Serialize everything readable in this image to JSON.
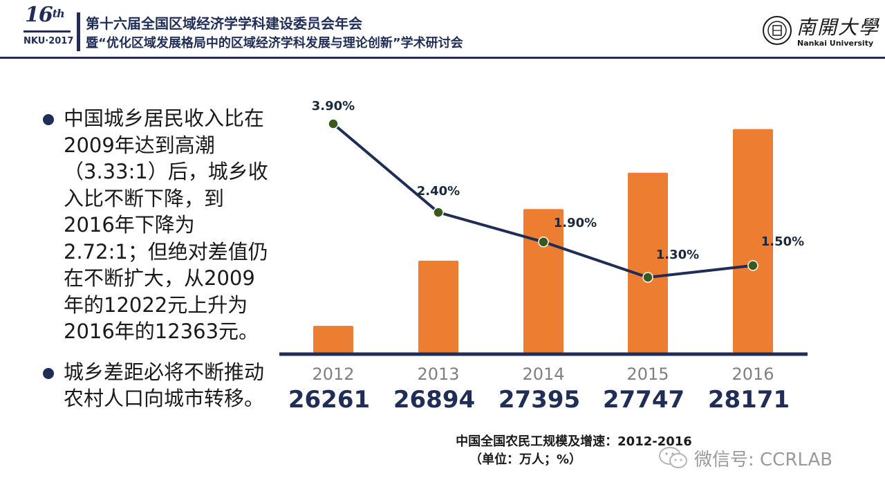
{
  "header": {
    "logo_number": "16",
    "logo_suffix": "th",
    "logo_sub": "NKU·2017",
    "title_line1": "第十六届全国区域经济学学科建设委员会年会",
    "title_line2": "暨“优化区域发展格局中的区域经济学科发展与理论创新”学术研讨会",
    "university_cn": "南開大學",
    "university_en": "Nankai University"
  },
  "bullets": [
    "中国城乡居民收入比在2009年达到高潮（3.33:1）后，城乡收入比不断下降，到2016年下降为2.72:1；但绝对差值仍在不断扩大，从2009年的12022元上升为2016年的12363元。",
    "城乡差距必将不断推动农村人口向城市转移。"
  ],
  "chart_data": {
    "type": "bar",
    "categories": [
      "2012",
      "2013",
      "2014",
      "2015",
      "2016"
    ],
    "series": [
      {
        "type": "bar",
        "values": [
          26261,
          26894,
          27395,
          27747,
          28171
        ],
        "labels": [
          "26261",
          "26894",
          "27395",
          "27747",
          "28171"
        ]
      },
      {
        "type": "line",
        "values": [
          3.9,
          2.4,
          1.9,
          1.3,
          1.5
        ],
        "labels": [
          "3.90%",
          "2.40%",
          "1.90%",
          "1.30%",
          "1.50%"
        ]
      }
    ],
    "title": "中国全国农民工规模及增速：2012-2016",
    "subtitle": "（单位：万人；%）",
    "colors": {
      "bar": "#ED7D31",
      "line": "#1F2D57",
      "marker": "#3A5A1C",
      "year": "#7F7F7F",
      "value": "#1F2D57"
    }
  },
  "watermark": {
    "text": "微信号: CCRLAB",
    "icon": "wechat-icon"
  }
}
